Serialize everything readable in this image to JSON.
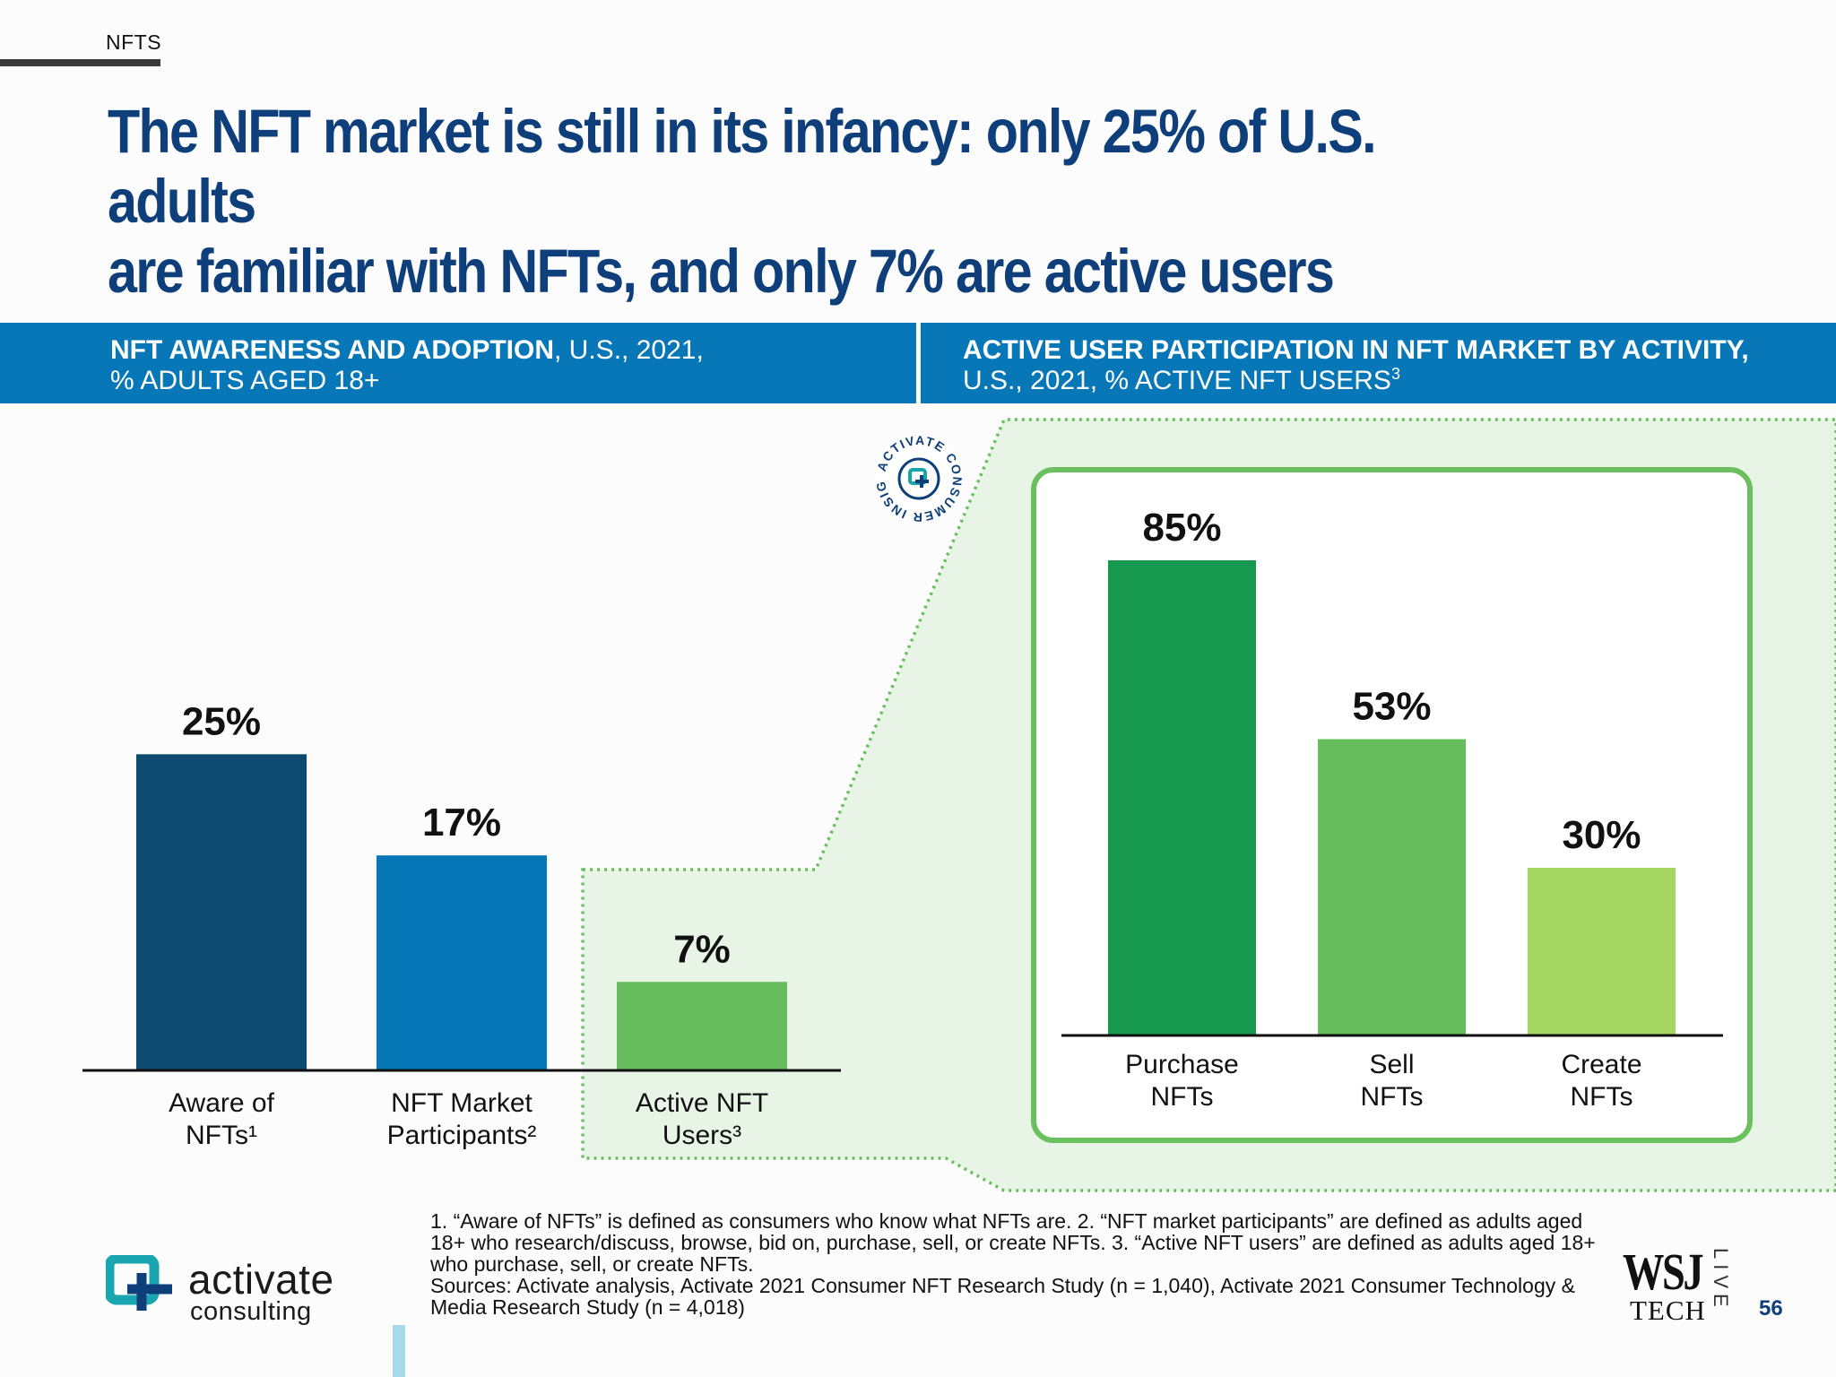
{
  "section_tag": "NFTS",
  "headline": {
    "line1": "The NFT market is still in its infancy: only 25% of U.S. adults",
    "line2": "are familiar with NFTs, and only 7% are active users"
  },
  "left_panel": {
    "title_bold": "NFT AWARENESS AND ADOPTION",
    "title_rest": ", U.S., 2021,",
    "subtitle": "% ADULTS AGED 18+"
  },
  "right_panel": {
    "title_bold": "ACTIVE USER PARTICIPATION IN NFT MARKET BY ACTIVITY,",
    "subtitle": "U.S., 2021, % ACTIVE NFT USERS",
    "subtitle_sup": "3"
  },
  "badge": {
    "text": "ACTIVATE CONSUMER INSIGHT"
  },
  "chart_data": [
    {
      "type": "bar",
      "title": "NFT AWARENESS AND ADOPTION, U.S., 2021, % ADULTS AGED 18+",
      "categories": [
        "Aware of NFTs¹",
        "NFT Market Participants²",
        "Active NFT Users³"
      ],
      "category_lines": [
        [
          "Aware of",
          "NFTs¹"
        ],
        [
          "NFT Market",
          "Participants²"
        ],
        [
          "Active NFT",
          "Users³"
        ]
      ],
      "values": [
        25,
        17,
        7
      ],
      "value_labels": [
        "25%",
        "17%",
        "7%"
      ],
      "colors": [
        "#0e4a6f",
        "#0877b8",
        "#67bd5e"
      ],
      "ylim": [
        0,
        28
      ]
    },
    {
      "type": "bar",
      "title": "ACTIVE USER PARTICIPATION IN NFT MARKET BY ACTIVITY, U.S., 2021, % ACTIVE NFT USERS³",
      "categories": [
        "Purchase NFTs",
        "Sell NFTs",
        "Create NFTs"
      ],
      "category_lines": [
        [
          "Purchase",
          "NFTs"
        ],
        [
          "Sell",
          "NFTs"
        ],
        [
          "Create",
          "NFTs"
        ]
      ],
      "values": [
        85,
        53,
        30
      ],
      "value_labels": [
        "85%",
        "53%",
        "30%"
      ],
      "colors": [
        "#16994f",
        "#67bd5e",
        "#a6d764"
      ],
      "ylim": [
        0,
        85
      ]
    }
  ],
  "footnotes": [
    "1. “Aware of NFTs” is defined as consumers who know what NFTs are.  2. “NFT market participants” are defined as adults aged",
    "18+ who research/discuss, browse, bid on, purchase, sell, or create NFTs.  3. “Active NFT users” are defined as adults aged 18+",
    "who purchase, sell, or create NFTs.",
    "Sources: Activate analysis, Activate 2021 Consumer NFT Research Study (n = 1,040), Activate 2021 Consumer Technology &",
    "Media Research Study (n = 4,018)"
  ],
  "logo": {
    "word1": "activate",
    "word2": "consulting"
  },
  "wsj": {
    "main": "WSJ",
    "tech": "TECH",
    "live": "LIVE"
  },
  "page_number": "56",
  "colors": {
    "navy": "#0e3f7a",
    "band_blue": "#0877b8",
    "highlight_green": "#6abf5f"
  }
}
